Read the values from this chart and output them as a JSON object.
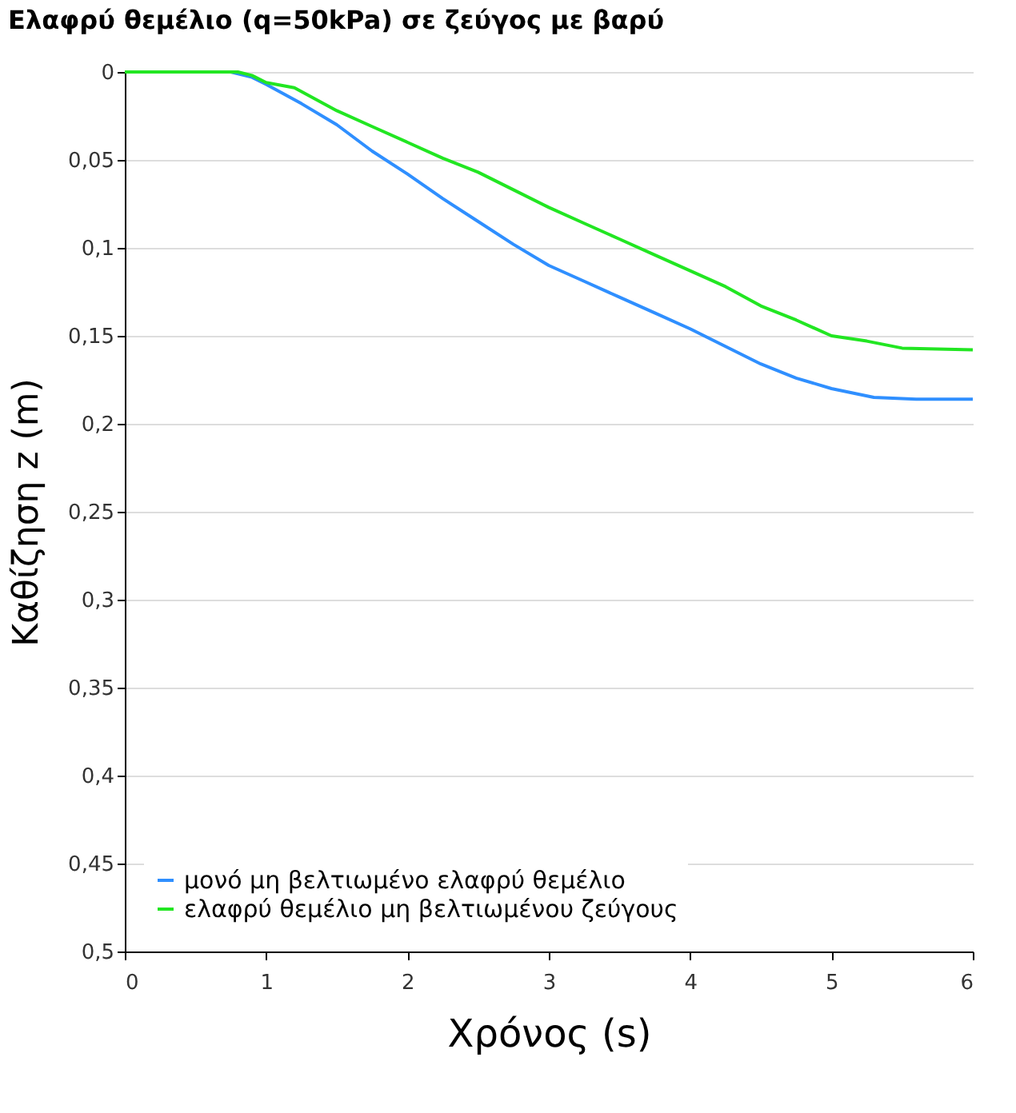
{
  "chart_data": {
    "type": "line",
    "title": "Ελαφρύ θεμέλιο (q=50kPa) σε ζεύγος με βαρύ",
    "xlabel": "Χρόνος (s)",
    "ylabel": "Καθίζηση z (m)",
    "xlim": [
      0,
      6
    ],
    "xticks": [
      0,
      1,
      2,
      3,
      4,
      5,
      6
    ],
    "ylim": [
      0.5,
      0
    ],
    "yticks": [
      0,
      {
        "value": 0.05,
        "label": "0,05"
      },
      {
        "value": 0.1,
        "label": "0,1"
      },
      {
        "value": 0.15,
        "label": "0,15"
      },
      {
        "value": 0.2,
        "label": "0,2"
      },
      {
        "value": 0.25,
        "label": "0,25"
      },
      {
        "value": 0.3,
        "label": "0,3"
      },
      {
        "value": 0.35,
        "label": "0,35"
      },
      {
        "value": 0.4,
        "label": "0,4"
      },
      {
        "value": 0.45,
        "label": "0,45"
      },
      {
        "value": 0.5,
        "label": "0,5"
      }
    ],
    "grid": "y",
    "legend": "bottom left",
    "marker": "none",
    "line_style": "solid",
    "series": [
      {
        "name": "μονό μη βελτιωμένο ελαφρύ θεμέλιο",
        "color": "#2f8fff",
        "x": [
          0,
          0.5,
          0.75,
          0.9,
          1.0,
          1.25,
          1.5,
          1.75,
          2.0,
          2.25,
          2.5,
          2.75,
          3.0,
          3.25,
          3.5,
          3.75,
          4.0,
          4.25,
          4.5,
          4.75,
          5.0,
          5.3,
          5.6,
          6.0
        ],
        "values": [
          0,
          0,
          0,
          0.003,
          0.007,
          0.018,
          0.03,
          0.045,
          0.058,
          0.072,
          0.085,
          0.098,
          0.11,
          0.119,
          0.128,
          0.137,
          0.146,
          0.156,
          0.166,
          0.174,
          0.18,
          0.185,
          0.186,
          0.186
        ]
      },
      {
        "name": "ελαφρύ θεμέλιο μη βελτιωμένου ζεύγους",
        "color": "#22e622",
        "x": [
          0,
          0.5,
          0.8,
          0.9,
          1.0,
          1.2,
          1.5,
          1.75,
          2.0,
          2.25,
          2.5,
          2.75,
          3.0,
          3.25,
          3.5,
          3.75,
          4.0,
          4.25,
          4.5,
          4.75,
          5.0,
          5.25,
          5.5,
          6.0
        ],
        "values": [
          0,
          0,
          0,
          0.002,
          0.006,
          0.009,
          0.022,
          0.031,
          0.04,
          0.049,
          0.057,
          0.067,
          0.077,
          0.086,
          0.095,
          0.104,
          0.113,
          0.122,
          0.133,
          0.141,
          0.15,
          0.153,
          0.157,
          0.158
        ]
      }
    ]
  }
}
